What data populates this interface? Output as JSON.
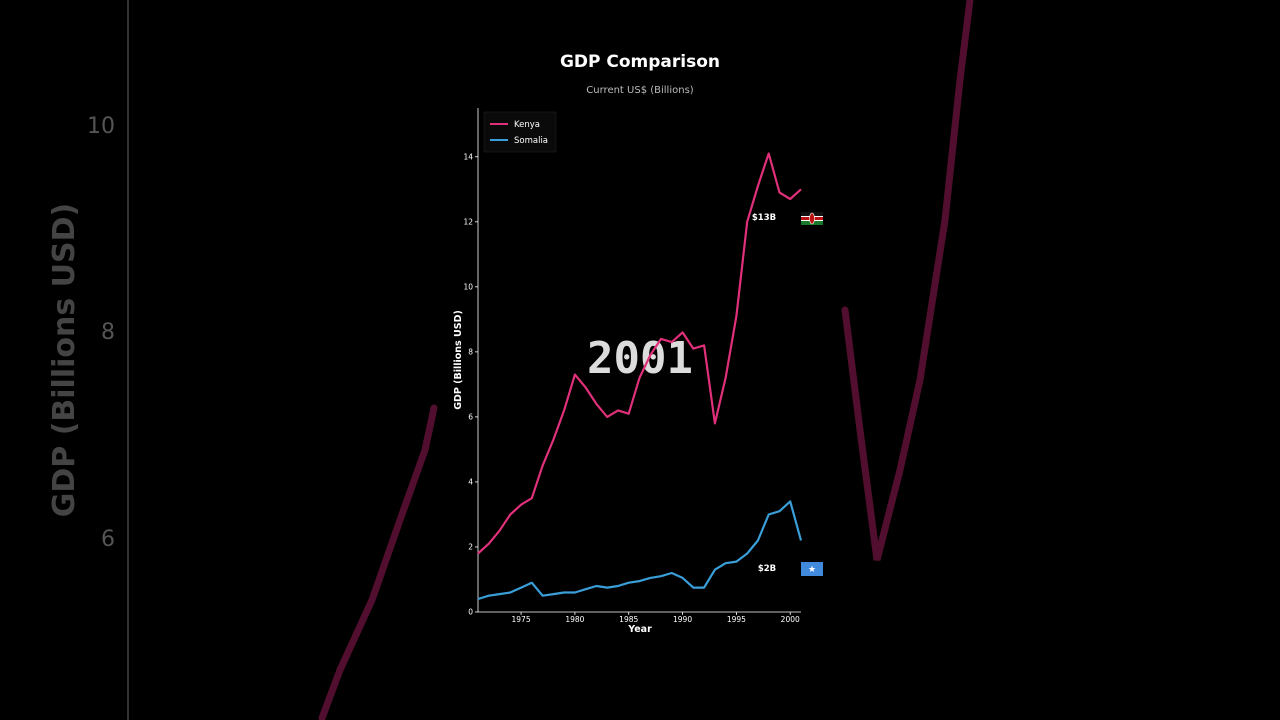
{
  "chart_data": {
    "type": "line",
    "title": "GDP Comparison",
    "subtitle": "Current US$ (Billions)",
    "xlabel": "Year",
    "ylabel": "GDP (Billions USD)",
    "xlim": [
      1971,
      2001
    ],
    "ylim": [
      0,
      15.5
    ],
    "x_ticks": [
      1975,
      1980,
      1985,
      1990,
      1995,
      2000
    ],
    "y_ticks": [
      0,
      2,
      4,
      6,
      8,
      10,
      12,
      14
    ],
    "legend_position": "top-left",
    "current_year_label": "2001",
    "series": [
      {
        "name": "Kenya",
        "color": "#e0307a",
        "end_label": "$13B",
        "flag": "kenya-flag",
        "x": [
          1971,
          1972,
          1973,
          1974,
          1975,
          1976,
          1977,
          1978,
          1979,
          1980,
          1981,
          1982,
          1983,
          1984,
          1985,
          1986,
          1987,
          1988,
          1989,
          1990,
          1991,
          1992,
          1993,
          1994,
          1995,
          1996,
          1997,
          1998,
          1999,
          2000,
          2001
        ],
        "values": [
          1.8,
          2.1,
          2.5,
          3.0,
          3.3,
          3.5,
          4.5,
          5.3,
          6.2,
          7.3,
          6.9,
          6.4,
          6.0,
          6.2,
          6.1,
          7.2,
          7.9,
          8.4,
          8.3,
          8.6,
          8.1,
          8.2,
          5.8,
          7.2,
          9.1,
          12.0,
          13.1,
          14.1,
          12.9,
          12.7,
          13.0
        ]
      },
      {
        "name": "Somalia",
        "color": "#3a9ed8",
        "end_label": "$2B",
        "flag": "somalia-flag",
        "x": [
          1971,
          1972,
          1973,
          1974,
          1975,
          1976,
          1977,
          1978,
          1979,
          1980,
          1981,
          1982,
          1983,
          1984,
          1985,
          1986,
          1987,
          1988,
          1989,
          1990,
          1991,
          1992,
          1993,
          1994,
          1995,
          1996,
          1997,
          1998,
          1999,
          2000,
          2001
        ],
        "values": [
          0.4,
          0.5,
          0.55,
          0.6,
          0.75,
          0.9,
          0.5,
          0.55,
          0.6,
          0.6,
          0.7,
          0.8,
          0.75,
          0.8,
          0.9,
          0.95,
          1.05,
          1.1,
          1.2,
          1.05,
          0.75,
          0.75,
          1.3,
          1.5,
          1.55,
          1.8,
          2.2,
          3.0,
          3.1,
          3.4,
          2.2
        ]
      }
    ]
  },
  "background": {
    "y_ticks": [
      "10",
      "8",
      "6"
    ],
    "ylabel": "GDP (Billions USD)",
    "line_color": "#5a1033"
  }
}
